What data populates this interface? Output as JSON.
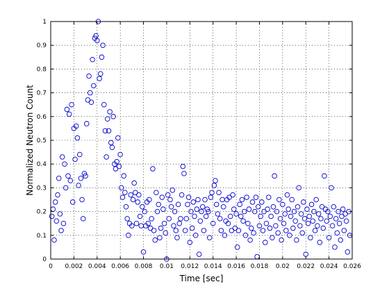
{
  "chart_data": {
    "type": "scatter",
    "xlabel": "Time [sec]",
    "ylabel": "Normalized Neutron Count",
    "xlim": [
      0,
      0.026
    ],
    "ylim": [
      0,
      1
    ],
    "x_tick_labels": [
      "0",
      "0.002",
      "0.004",
      "0.006",
      "0.008",
      "0.01",
      "0.012",
      "0.014",
      "0.016",
      "0.018",
      "0.02",
      "0.022",
      "0.024",
      "0.026"
    ],
    "y_tick_labels": [
      "0",
      "0.1",
      "0.2",
      "0.3",
      "0.4",
      "0.5",
      "0.6",
      "0.7",
      "0.8",
      "0.9",
      "1"
    ],
    "grid": true,
    "marker": "circle",
    "marker_color": "#0000cc",
    "points": [
      [
        0.0001,
        0.18
      ],
      [
        0.0002,
        0.21
      ],
      [
        0.0003,
        0.08
      ],
      [
        0.0004,
        0.24
      ],
      [
        0.0005,
        0.16
      ],
      [
        0.0006,
        0.27
      ],
      [
        0.0007,
        0.34
      ],
      [
        0.0008,
        0.19
      ],
      [
        0.0009,
        0.12
      ],
      [
        0.001,
        0.43
      ],
      [
        0.0011,
        0.15
      ],
      [
        0.0012,
        0.4
      ],
      [
        0.0013,
        0.3
      ],
      [
        0.0014,
        0.63
      ],
      [
        0.0015,
        0.35
      ],
      [
        0.0016,
        0.61
      ],
      [
        0.0017,
        0.33
      ],
      [
        0.0018,
        0.65
      ],
      [
        0.0019,
        0.24
      ],
      [
        0.002,
        0.55
      ],
      [
        0.0021,
        0.42
      ],
      [
        0.0022,
        0.56
      ],
      [
        0.0023,
        0.51
      ],
      [
        0.0024,
        0.31
      ],
      [
        0.0025,
        0.44
      ],
      [
        0.0026,
        0.34
      ],
      [
        0.0027,
        0.25
      ],
      [
        0.0028,
        0.17
      ],
      [
        0.0029,
        0.36
      ],
      [
        0.003,
        0.35
      ],
      [
        0.0031,
        0.57
      ],
      [
        0.0032,
        0.67
      ],
      [
        0.0033,
        0.77
      ],
      [
        0.0034,
        0.7
      ],
      [
        0.0035,
        0.66
      ],
      [
        0.0036,
        0.84
      ],
      [
        0.0037,
        0.73
      ],
      [
        0.0038,
        0.93
      ],
      [
        0.0039,
        0.94
      ],
      [
        0.004,
        0.92
      ],
      [
        0.0041,
        1.0
      ],
      [
        0.0042,
        0.76
      ],
      [
        0.0043,
        0.78
      ],
      [
        0.0044,
        0.85
      ],
      [
        0.0045,
        0.9
      ],
      [
        0.0046,
        0.65
      ],
      [
        0.0047,
        0.54
      ],
      [
        0.0048,
        0.43
      ],
      [
        0.0049,
        0.59
      ],
      [
        0.005,
        0.54
      ],
      [
        0.0051,
        0.62
      ],
      [
        0.0052,
        0.49
      ],
      [
        0.0053,
        0.47
      ],
      [
        0.0054,
        0.6
      ],
      [
        0.0055,
        0.4
      ],
      [
        0.0056,
        0.38
      ],
      [
        0.0057,
        0.41
      ],
      [
        0.0058,
        0.51
      ],
      [
        0.0059,
        0.39
      ],
      [
        0.006,
        0.44
      ],
      [
        0.0061,
        0.3
      ],
      [
        0.0062,
        0.26
      ],
      [
        0.0063,
        0.35
      ],
      [
        0.0064,
        0.28
      ],
      [
        0.0065,
        0.22
      ],
      [
        0.0066,
        0.17
      ],
      [
        0.0067,
        0.1
      ],
      [
        0.0068,
        0.15
      ],
      [
        0.0069,
        0.27
      ],
      [
        0.007,
        0.14
      ],
      [
        0.0071,
        0.25
      ],
      [
        0.0072,
        0.32
      ],
      [
        0.0073,
        0.28
      ],
      [
        0.0074,
        0.15
      ],
      [
        0.0075,
        0.24
      ],
      [
        0.0076,
        0.27
      ],
      [
        0.0077,
        0.18
      ],
      [
        0.0078,
        0.14
      ],
      [
        0.0079,
        0.22
      ],
      [
        0.008,
        0.03
      ],
      [
        0.0081,
        0.2
      ],
      [
        0.0082,
        0.14
      ],
      [
        0.0083,
        0.24
      ],
      [
        0.0084,
        0.15
      ],
      [
        0.0085,
        0.25
      ],
      [
        0.0086,
        0.13
      ],
      [
        0.0087,
        0.17
      ],
      [
        0.0088,
        0.38
      ],
      [
        0.0089,
        0.12
      ],
      [
        0.009,
        0.08
      ],
      [
        0.0091,
        0.28
      ],
      [
        0.0092,
        0.2
      ],
      [
        0.0093,
        0.23
      ],
      [
        0.0094,
        0.09
      ],
      [
        0.0095,
        0.13
      ],
      [
        0.0096,
        0.26
      ],
      [
        0.0097,
        0.21
      ],
      [
        0.0098,
        0.15
      ],
      [
        0.0099,
        0.11
      ],
      [
        0.01,
        0.0
      ],
      [
        0.0101,
        0.27
      ],
      [
        0.0102,
        0.17
      ],
      [
        0.0103,
        0.25
      ],
      [
        0.0104,
        0.22
      ],
      [
        0.0105,
        0.29
      ],
      [
        0.0106,
        0.14
      ],
      [
        0.0107,
        0.2
      ],
      [
        0.0108,
        0.12
      ],
      [
        0.0109,
        0.09
      ],
      [
        0.011,
        0.23
      ],
      [
        0.0111,
        0.15
      ],
      [
        0.0112,
        0.17
      ],
      [
        0.0113,
        0.27
      ],
      [
        0.0114,
        0.39
      ],
      [
        0.0115,
        0.36
      ],
      [
        0.0116,
        0.12
      ],
      [
        0.0117,
        0.17
      ],
      [
        0.0118,
        0.23
      ],
      [
        0.0119,
        0.26
      ],
      [
        0.012,
        0.07
      ],
      [
        0.0121,
        0.2
      ],
      [
        0.0122,
        0.13
      ],
      [
        0.0123,
        0.24
      ],
      [
        0.0124,
        0.18
      ],
      [
        0.0125,
        0.1
      ],
      [
        0.0126,
        0.21
      ],
      [
        0.0127,
        0.25
      ],
      [
        0.0128,
        0.02
      ],
      [
        0.0129,
        0.16
      ],
      [
        0.013,
        0.2
      ],
      [
        0.0131,
        0.22
      ],
      [
        0.0132,
        0.12
      ],
      [
        0.0133,
        0.25
      ],
      [
        0.0134,
        0.18
      ],
      [
        0.0135,
        0.21
      ],
      [
        0.0136,
        0.2
      ],
      [
        0.0137,
        0.09
      ],
      [
        0.0138,
        0.26
      ],
      [
        0.0139,
        0.28
      ],
      [
        0.014,
        0.15
      ],
      [
        0.0141,
        0.31
      ],
      [
        0.0142,
        0.33
      ],
      [
        0.0143,
        0.23
      ],
      [
        0.0144,
        0.19
      ],
      [
        0.0145,
        0.28
      ],
      [
        0.0146,
        0.17
      ],
      [
        0.0147,
        0.12
      ],
      [
        0.0148,
        0.25
      ],
      [
        0.0149,
        0.22
      ],
      [
        0.015,
        0.1
      ],
      [
        0.0151,
        0.16
      ],
      [
        0.0152,
        0.25
      ],
      [
        0.0153,
        0.15
      ],
      [
        0.0154,
        0.26
      ],
      [
        0.0155,
        0.18
      ],
      [
        0.0156,
        0.12
      ],
      [
        0.0157,
        0.27
      ],
      [
        0.0158,
        0.21
      ],
      [
        0.0159,
        0.13
      ],
      [
        0.016,
        0.19
      ],
      [
        0.0161,
        0.05
      ],
      [
        0.0162,
        0.12
      ],
      [
        0.0163,
        0.23
      ],
      [
        0.0164,
        0.18
      ],
      [
        0.0165,
        0.25
      ],
      [
        0.0166,
        0.16
      ],
      [
        0.0167,
        0.2
      ],
      [
        0.0168,
        0.1
      ],
      [
        0.0169,
        0.26
      ],
      [
        0.017,
        0.15
      ],
      [
        0.0171,
        0.21
      ],
      [
        0.0172,
        0.08
      ],
      [
        0.0173,
        0.13
      ],
      [
        0.0174,
        0.24
      ],
      [
        0.0175,
        0.11
      ],
      [
        0.0176,
        0.2
      ],
      [
        0.0177,
        0.26
      ],
      [
        0.0178,
        0.01
      ],
      [
        0.0179,
        0.22
      ],
      [
        0.018,
        0.14
      ],
      [
        0.0181,
        0.18
      ],
      [
        0.0182,
        0.24
      ],
      [
        0.0183,
        0.12
      ],
      [
        0.0184,
        0.2
      ],
      [
        0.0185,
        0.07
      ],
      [
        0.0186,
        0.15
      ],
      [
        0.0187,
        0.21
      ],
      [
        0.0188,
        0.26
      ],
      [
        0.0189,
        0.13
      ],
      [
        0.019,
        0.18
      ],
      [
        0.0191,
        0.09
      ],
      [
        0.0192,
        0.22
      ],
      [
        0.0193,
        0.35
      ],
      [
        0.0194,
        0.14
      ],
      [
        0.0195,
        0.2
      ],
      [
        0.0196,
        0.11
      ],
      [
        0.0197,
        0.25
      ],
      [
        0.0198,
        0.17
      ],
      [
        0.0199,
        0.08
      ],
      [
        0.02,
        0.23
      ],
      [
        0.0201,
        0.15
      ],
      [
        0.0202,
        0.19
      ],
      [
        0.0203,
        0.12
      ],
      [
        0.0204,
        0.27
      ],
      [
        0.0205,
        0.21
      ],
      [
        0.0206,
        0.1
      ],
      [
        0.0207,
        0.18
      ],
      [
        0.0208,
        0.25
      ],
      [
        0.0209,
        0.13
      ],
      [
        0.021,
        0.2
      ],
      [
        0.0211,
        0.16
      ],
      [
        0.0212,
        0.08
      ],
      [
        0.0213,
        0.22
      ],
      [
        0.0214,
        0.3
      ],
      [
        0.0215,
        0.14
      ],
      [
        0.0216,
        0.19
      ],
      [
        0.0217,
        0.11
      ],
      [
        0.0218,
        0.24
      ],
      [
        0.0219,
        0.17
      ],
      [
        0.022,
        0.02
      ],
      [
        0.0221,
        0.21
      ],
      [
        0.0222,
        0.15
      ],
      [
        0.0223,
        0.18
      ],
      [
        0.0224,
        0.09
      ],
      [
        0.0225,
        0.23
      ],
      [
        0.0226,
        0.16
      ],
      [
        0.0227,
        0.2
      ],
      [
        0.0228,
        0.12
      ],
      [
        0.0229,
        0.25
      ],
      [
        0.023,
        0.14
      ],
      [
        0.0231,
        0.19
      ],
      [
        0.0232,
        0.07
      ],
      [
        0.0233,
        0.17
      ],
      [
        0.0234,
        0.22
      ],
      [
        0.0235,
        0.13
      ],
      [
        0.0236,
        0.35
      ],
      [
        0.0237,
        0.21
      ],
      [
        0.0238,
        0.16
      ],
      [
        0.0239,
        0.2
      ],
      [
        0.024,
        0.09
      ],
      [
        0.0241,
        0.18
      ],
      [
        0.0242,
        0.3
      ],
      [
        0.0243,
        0.14
      ],
      [
        0.0244,
        0.22
      ],
      [
        0.0245,
        0.05
      ],
      [
        0.0246,
        0.17
      ],
      [
        0.0247,
        0.11
      ],
      [
        0.0248,
        0.2
      ],
      [
        0.0249,
        0.15
      ],
      [
        0.025,
        0.08
      ],
      [
        0.0251,
        0.18
      ],
      [
        0.0252,
        0.21
      ],
      [
        0.0253,
        0.12
      ],
      [
        0.0254,
        0.19
      ],
      [
        0.0255,
        0.16
      ],
      [
        0.0256,
        0.03
      ],
      [
        0.0257,
        0.2
      ],
      [
        0.0258,
        0.1
      ]
    ]
  }
}
